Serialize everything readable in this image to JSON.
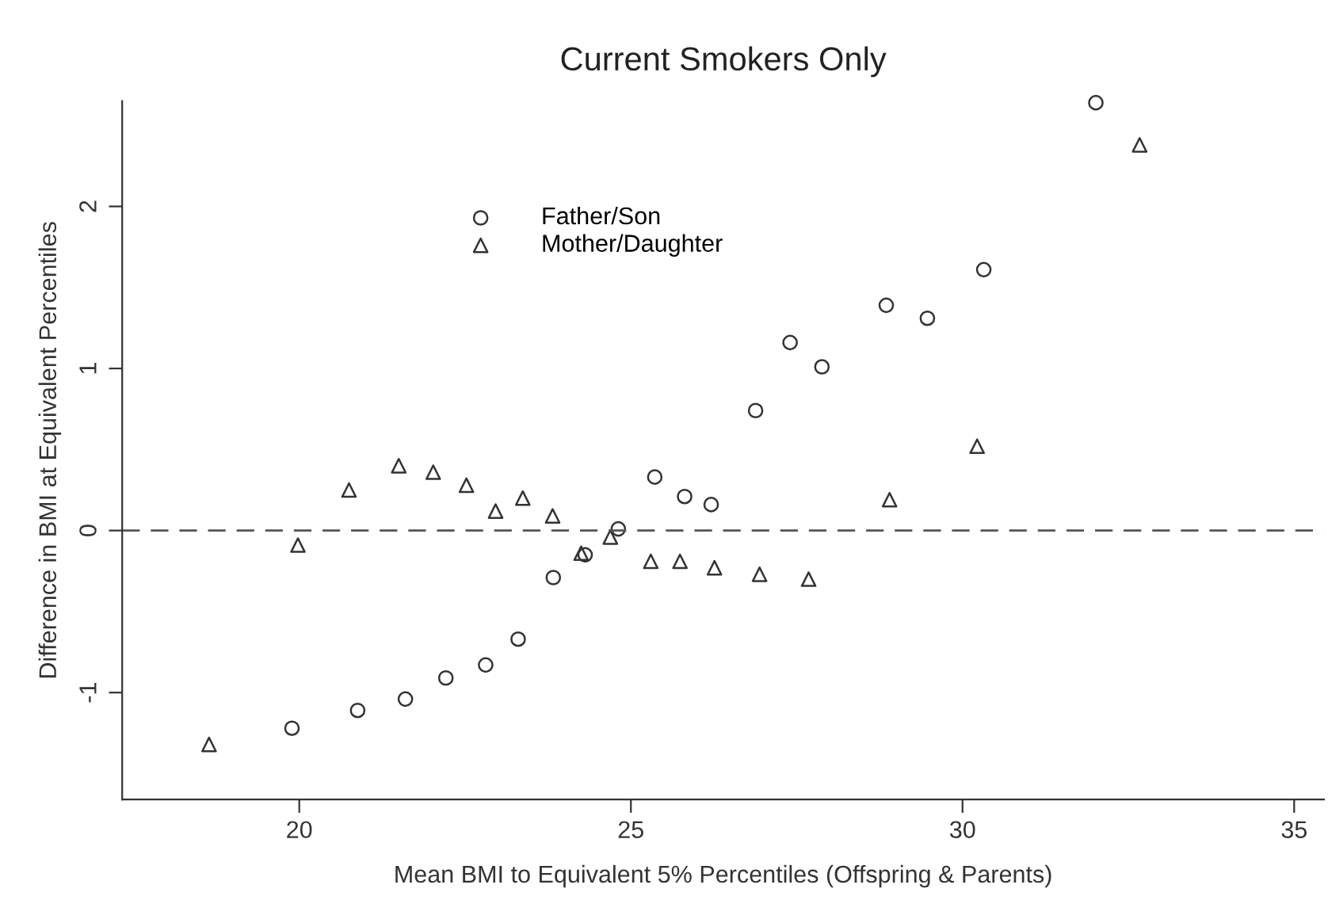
{
  "chart_data": {
    "type": "scatter",
    "title": "Current Smokers Only",
    "xlabel": "Mean BMI to Equivalent 5% Percentiles (Offspring & Parents)",
    "ylabel": "Difference in BMI at Equivalent Percentiles",
    "xlim": [
      17.33,
      35.45
    ],
    "ylim": [
      -1.66,
      2.65
    ],
    "xticks": [
      20,
      25,
      30,
      35
    ],
    "yticks": [
      -1,
      0,
      1,
      2
    ],
    "grid": false,
    "legend": "top",
    "ref_lines": [
      {
        "axis": "y",
        "value": 0,
        "color": "#555555",
        "line_style": "dashed"
      }
    ],
    "series": [
      {
        "name": "Father/Son",
        "color": "#333333",
        "marker": "circle",
        "x": [
          19.89,
          20.88,
          21.6,
          22.21,
          22.81,
          23.3,
          23.83,
          24.31,
          24.81,
          25.36,
          25.81,
          26.21,
          26.88,
          27.4,
          27.88,
          28.85,
          29.47,
          30.32,
          32.01
        ],
        "values": [
          -1.22,
          -1.11,
          -1.04,
          -0.91,
          -0.83,
          -0.67,
          -0.29,
          -0.15,
          0.01,
          0.33,
          0.21,
          0.16,
          0.74,
          1.16,
          1.01,
          1.39,
          1.31,
          1.61,
          2.64
        ]
      },
      {
        "name": "Mother/Daughter",
        "color": "#333333",
        "marker": "triangle",
        "x": [
          18.64,
          19.98,
          20.75,
          21.5,
          22.02,
          22.52,
          22.96,
          23.37,
          23.82,
          24.25,
          24.69,
          25.3,
          25.74,
          26.26,
          26.94,
          27.68,
          28.9,
          30.22,
          32.67
        ],
        "values": [
          -1.32,
          -0.09,
          0.25,
          0.4,
          0.36,
          0.28,
          0.12,
          0.2,
          0.09,
          -0.14,
          -0.04,
          -0.19,
          -0.19,
          -0.23,
          -0.27,
          -0.3,
          0.19,
          0.52,
          2.38
        ]
      }
    ]
  }
}
